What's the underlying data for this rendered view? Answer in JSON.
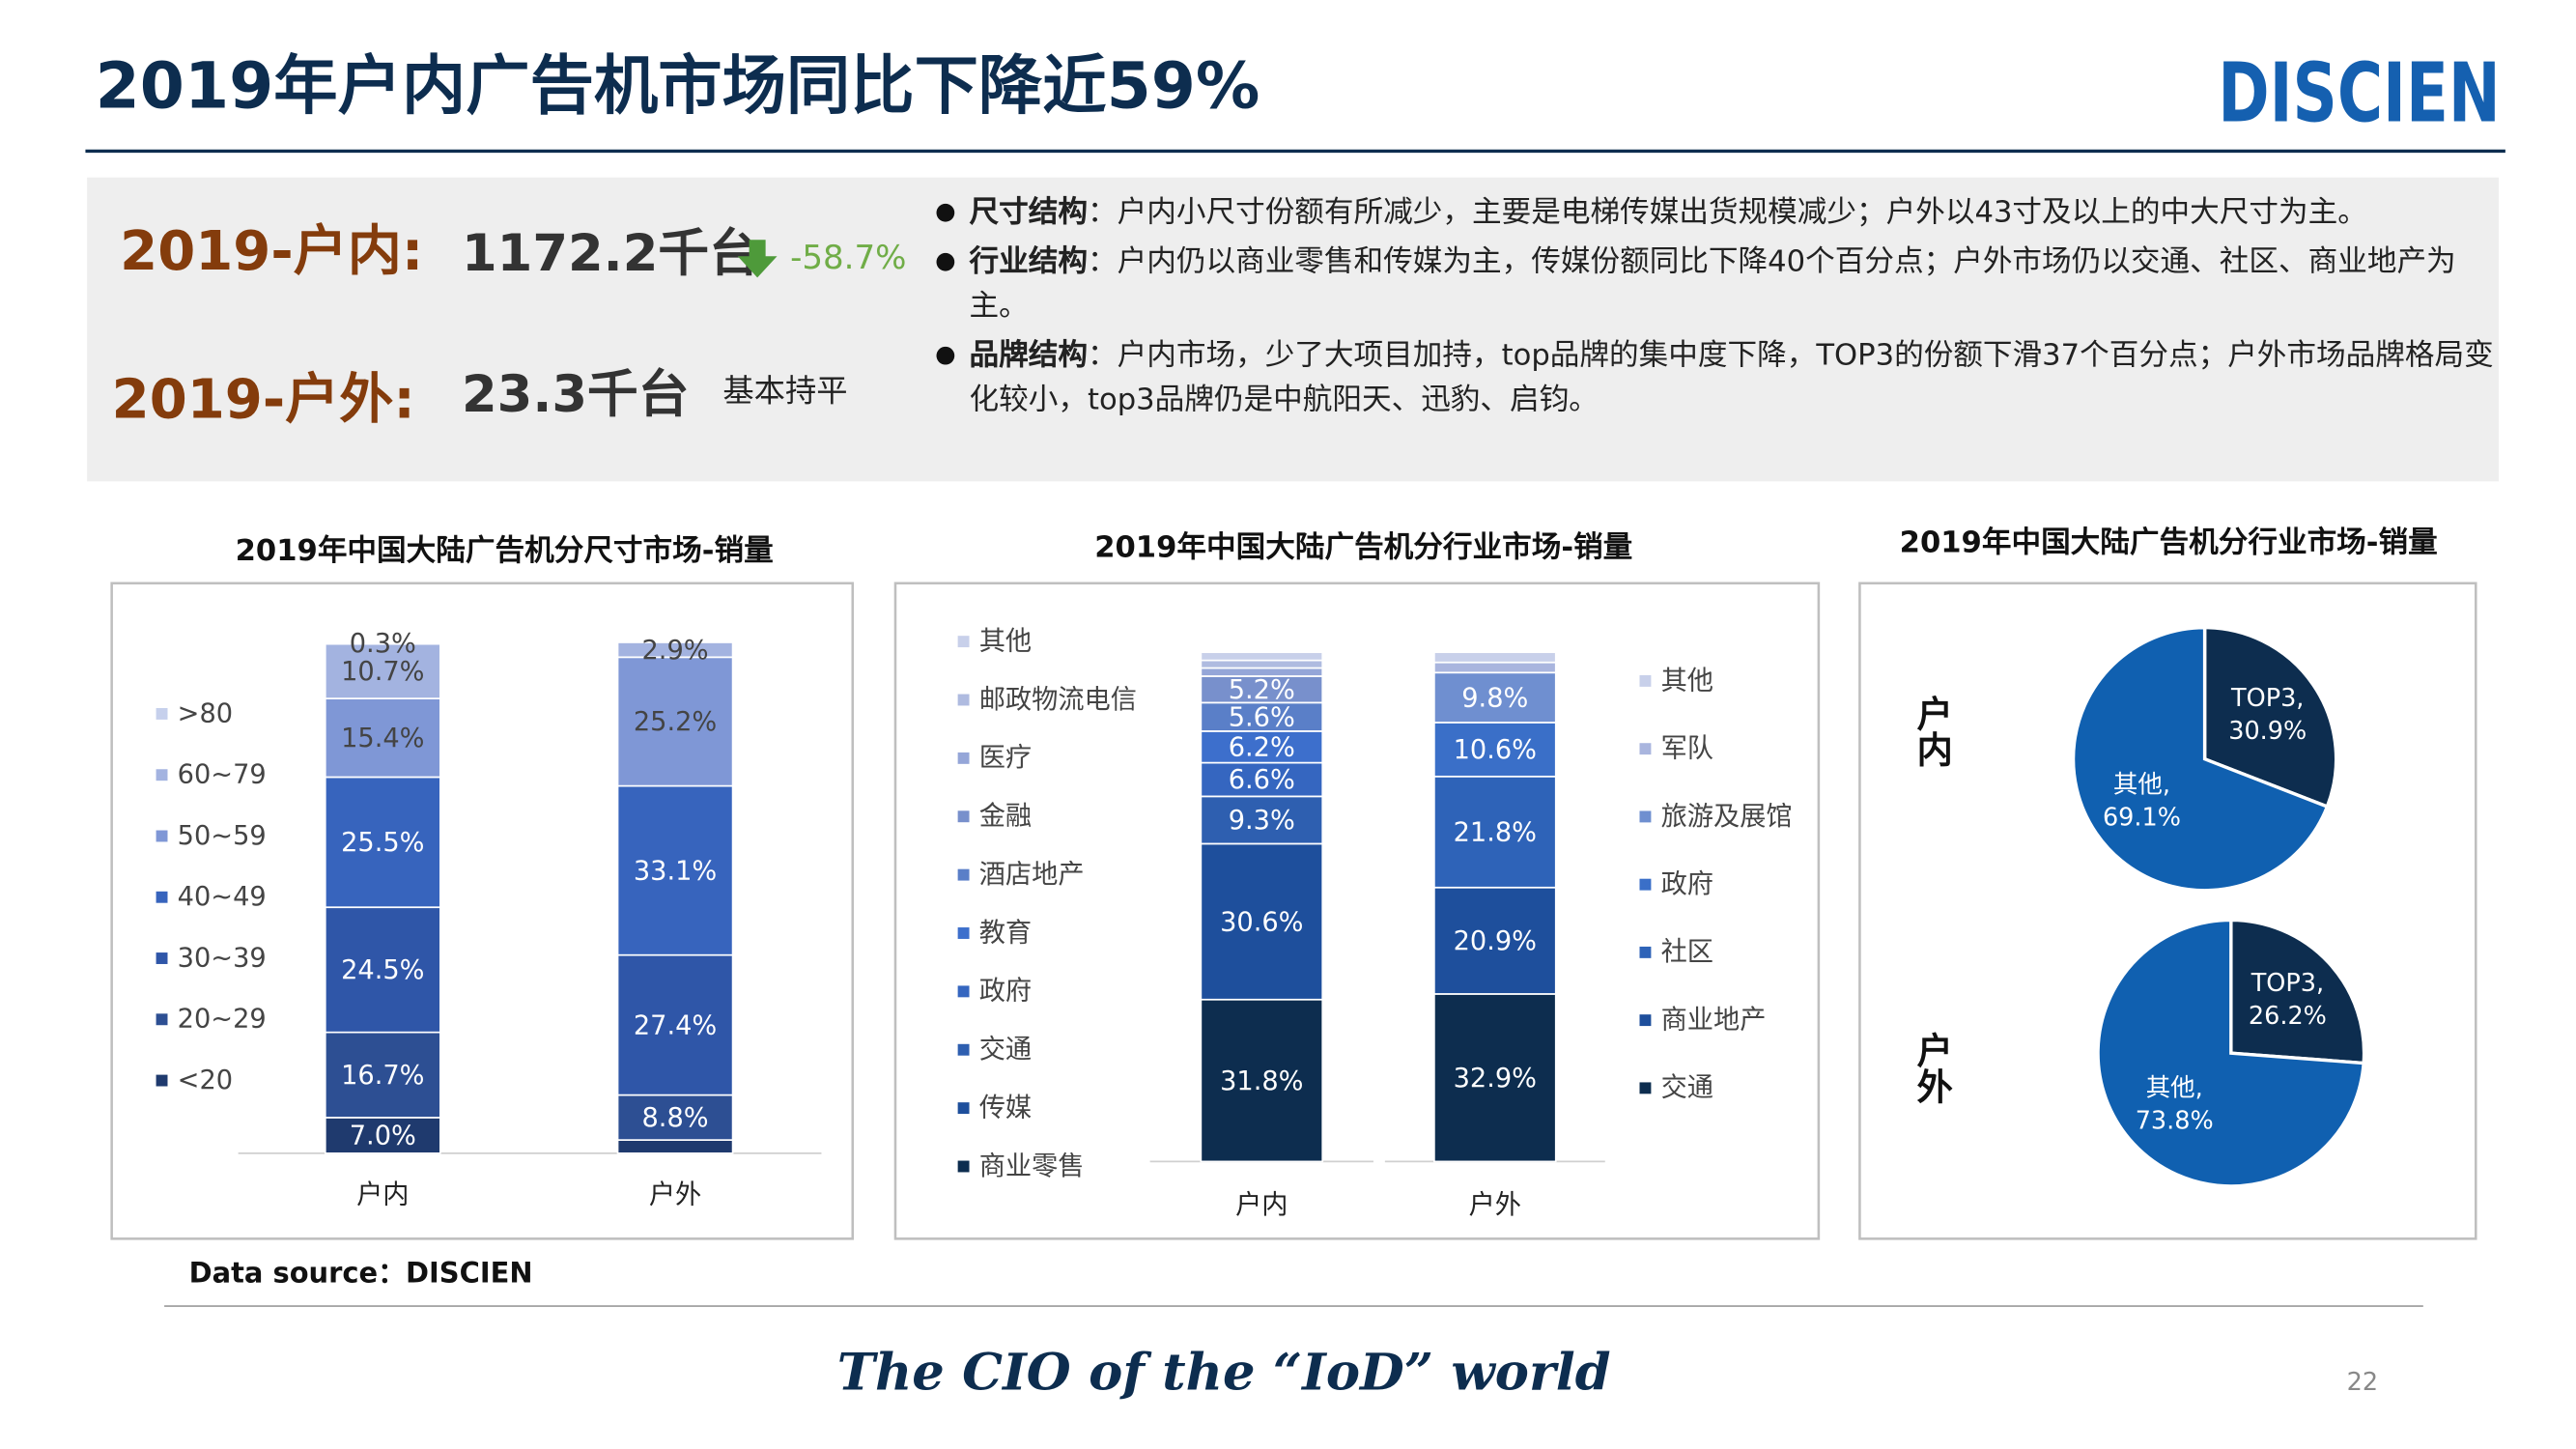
{
  "header": {
    "title": "2019年户内广告机市场同比下降近59%",
    "logo": "DISCIEN"
  },
  "summary": {
    "indoor_label": "2019-户内:",
    "indoor_value": "1172.2千台",
    "indoor_change": "-58.7%",
    "outdoor_label": "2019-户外:",
    "outdoor_value": "23.3千台",
    "outdoor_note": "基本持平"
  },
  "bullets": [
    {
      "head": "尺寸结构",
      "text": "：户内小尺寸份额有所减少，主要是电梯传媒出货规模减少；户外以43寸及以上的中大尺寸为主。"
    },
    {
      "head": "行业结构",
      "text": "：户内仍以商业零售和传媒为主，传媒份额同比下降40个百分点；户外市场仍以交通、社区、商业地产为主。"
    },
    {
      "head": "品牌结构",
      "text": "：户内市场，少了大项目加持，top品牌的集中度下降，TOP3的份额下滑37个百分点；户外市场品牌格局变化较小，top3品牌仍是中航阳天、迅豹、启钧。"
    }
  ],
  "chart_data": [
    {
      "type": "stacked-bar",
      "title": "2019年中国大陆广告机分尺寸市场-销量",
      "categories": [
        "户内",
        "户外"
      ],
      "series": [
        {
          "name": "<20",
          "color": "#1f3a6e",
          "values": [
            7.0,
            2.6
          ],
          "value_labels": [
            "7.0%",
            null
          ]
        },
        {
          "name": "20~29",
          "color": "#2d4f93",
          "values": [
            16.7,
            8.8
          ],
          "value_labels": [
            "16.7%",
            "8.8%"
          ]
        },
        {
          "name": "30~39",
          "color": "#2f56a8",
          "values": [
            24.5,
            27.4
          ],
          "value_labels": [
            "24.5%",
            "27.4%"
          ]
        },
        {
          "name": "40~49",
          "color": "#3764bd",
          "values": [
            25.5,
            33.1
          ],
          "value_labels": [
            "25.5%",
            "33.1%"
          ]
        },
        {
          "name": "50~59",
          "color": "#7f97d6",
          "values": [
            15.4,
            25.2
          ],
          "value_labels": [
            "15.4%",
            "25.2%"
          ]
        },
        {
          "name": "60~79",
          "color": "#a3b3e0",
          "values": [
            10.7,
            2.9
          ],
          "value_labels": [
            "10.7%",
            "2.9%"
          ]
        },
        {
          "name": ">80",
          "color": "#c6d0ec",
          "values": [
            0.3,
            0
          ],
          "value_labels": [
            "0.3%",
            null
          ]
        }
      ]
    },
    {
      "type": "stacked-bar-split",
      "title": "2019年中国大陆广告机分行业市场-销量",
      "stacks": [
        {
          "category": "户内",
          "series": [
            {
              "name": "商业零售",
              "color": "#0d2d4f",
              "value": 31.8,
              "value_label": "31.8%"
            },
            {
              "name": "传媒",
              "color": "#1e4f9c",
              "value": 30.6,
              "value_label": "30.6%"
            },
            {
              "name": "交通",
              "color": "#2e5fb0",
              "value": 9.3,
              "value_label": "9.3%"
            },
            {
              "name": "政府",
              "color": "#3566c0",
              "value": 6.6,
              "value_label": "6.6%"
            },
            {
              "name": "教育",
              "color": "#3d6fcc",
              "value": 6.2,
              "value_label": "6.2%"
            },
            {
              "name": "酒店地产",
              "color": "#5a7fc8",
              "value": 5.6,
              "value_label": "5.6%"
            },
            {
              "name": "金融",
              "color": "#7890cc",
              "value": 5.2,
              "value_label": "5.2%"
            },
            {
              "name": "医疗",
              "color": "#95a6d8",
              "value": 1.6,
              "value_label": null
            },
            {
              "name": "邮政物流电信",
              "color": "#afbbe0",
              "value": 1.5,
              "value_label": null
            },
            {
              "name": "其他",
              "color": "#c8d0ea",
              "value": 1.6,
              "value_label": null
            }
          ]
        },
        {
          "category": "户外",
          "series": [
            {
              "name": "交通",
              "color": "#0d2d4f",
              "value": 32.9,
              "value_label": "32.9%"
            },
            {
              "name": "商业地产",
              "color": "#1e4f9c",
              "value": 20.9,
              "value_label": "20.9%"
            },
            {
              "name": "社区",
              "color": "#2e63b8",
              "value": 21.8,
              "value_label": "21.8%"
            },
            {
              "name": "政府",
              "color": "#3a6fc8",
              "value": 10.6,
              "value_label": "10.6%"
            },
            {
              "name": "旅游及展馆",
              "color": "#6f8fd0",
              "value": 9.8,
              "value_label": "9.8%"
            },
            {
              "name": "军队",
              "color": "#a9b5de",
              "value": 2.0,
              "value_label": null
            },
            {
              "name": "其他",
              "color": "#c8d0ea",
              "value": 2.0,
              "value_label": null
            }
          ]
        }
      ]
    },
    {
      "type": "pie-pair",
      "title": "2019年中国大陆广告机分行业市场-销量",
      "pies": [
        {
          "label": "户内",
          "slices": [
            {
              "name": "TOP3,",
              "color": "#0d2d4f",
              "value": 30.9,
              "value_label": "30.9%"
            },
            {
              "name": "其他,",
              "color": "#1060b0",
              "value": 69.1,
              "value_label": "69.1%"
            }
          ]
        },
        {
          "label": "户外",
          "slices": [
            {
              "name": "TOP3,",
              "color": "#0d2d4f",
              "value": 26.2,
              "value_label": "26.2%"
            },
            {
              "name": "其他,",
              "color": "#1060b0",
              "value": 73.8,
              "value_label": "73.8%"
            }
          ]
        }
      ]
    }
  ],
  "source": "Data source：DISCIEN",
  "slogan": "The CIO of the “IoD” world",
  "page_number": "22"
}
